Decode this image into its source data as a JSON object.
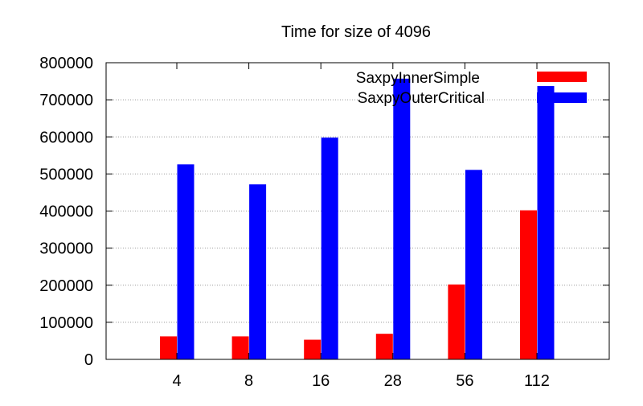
{
  "colors": {
    "series_1": "#ff0000",
    "series_2": "#0000ff",
    "grid": "#999999",
    "axis": "#000000",
    "background": "#ffffff"
  },
  "chart_data": {
    "type": "bar",
    "title": "Time for size of 4096",
    "xlabel": "",
    "ylabel": "",
    "categories": [
      "4",
      "8",
      "16",
      "28",
      "56",
      "112"
    ],
    "series": [
      {
        "name": "SaxpyInnerSimple",
        "values": [
          62000,
          62000,
          53000,
          69000,
          202000,
          402000
        ]
      },
      {
        "name": "SaxpyOuterCritical",
        "values": [
          526000,
          472000,
          598000,
          757000,
          511000,
          737000
        ]
      }
    ],
    "ylim": [
      0,
      800000
    ],
    "yticks": [
      0,
      100000,
      200000,
      300000,
      400000,
      500000,
      600000,
      700000,
      800000
    ],
    "grid": true,
    "grid_axis": "y",
    "legend_position": "top-right"
  }
}
